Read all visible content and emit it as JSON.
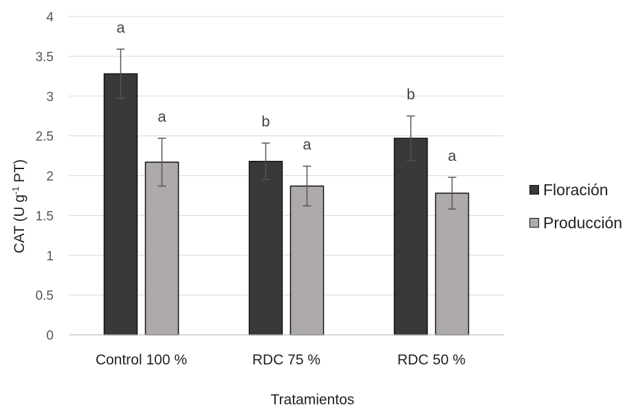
{
  "chart_data": {
    "type": "bar",
    "categories": [
      "Control 100 %",
      "RDC 75 %",
      "RDC 50 %"
    ],
    "series": [
      {
        "name": "Floración",
        "color": "#3a3838",
        "values": [
          3.28,
          2.18,
          2.47
        ],
        "errors": [
          0.31,
          0.23,
          0.28
        ],
        "labels": [
          "a",
          "b",
          "b"
        ]
      },
      {
        "name": "Producción",
        "color": "#aeaaaa",
        "values": [
          2.17,
          1.87,
          1.78
        ],
        "errors": [
          0.3,
          0.25,
          0.2
        ],
        "labels": [
          "a",
          "a",
          "a"
        ]
      }
    ],
    "ylim": [
      0,
      4
    ],
    "yticks": [
      "0",
      "0.5",
      "1",
      "1.5",
      "2",
      "2.5",
      "3",
      "3.5",
      "4"
    ],
    "ylabel": {
      "main": "CAT (U g",
      "sup": "-1",
      "tail": " PT)"
    },
    "xlabel": "Tratamientos",
    "grid": true,
    "legend_position": "right"
  }
}
